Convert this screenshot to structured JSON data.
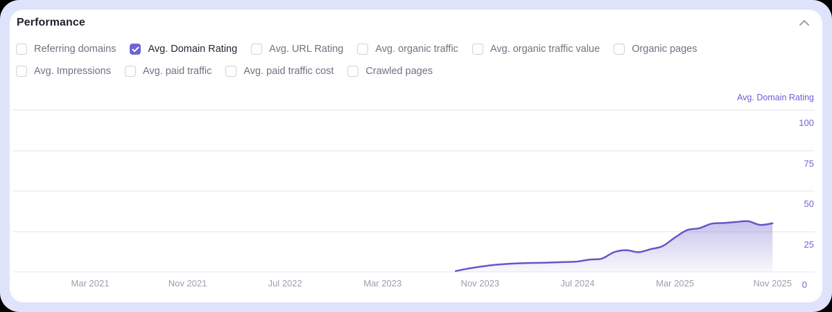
{
  "header": {
    "title": "Performance",
    "collapse_icon": "chevron-up"
  },
  "metrics": {
    "rows": [
      [
        {
          "label": "Referring domains",
          "checked": false
        },
        {
          "label": "Avg. Domain Rating",
          "checked": true
        },
        {
          "label": "Avg. URL Rating",
          "checked": false
        },
        {
          "label": "Avg. organic traffic",
          "checked": false
        },
        {
          "label": "Avg. organic traffic value",
          "checked": false
        },
        {
          "label": "Organic pages",
          "checked": false
        }
      ],
      [
        {
          "label": "Avg. Impressions",
          "checked": false
        },
        {
          "label": "Avg. paid traffic",
          "checked": false
        },
        {
          "label": "Avg. paid traffic cost",
          "checked": false
        },
        {
          "label": "Crawled pages",
          "checked": false
        }
      ]
    ]
  },
  "colors": {
    "accent": "#6f64d2",
    "line": "#6356c8",
    "frame": "#dfe4fc",
    "card": "#ffffff",
    "gridline": "#f1f2f5",
    "y_tick_text": "#6a66d1",
    "x_tick_text": "#999fa9"
  },
  "chart_data": {
    "type": "area",
    "title": "",
    "xlabel": "",
    "ylabel": "Avg. Domain Rating",
    "grid": "horizontal",
    "legend_position": "none",
    "y_axis": {
      "label": "Avg. Domain Rating",
      "side": "right",
      "ticks": [
        100,
        75,
        50,
        25,
        0
      ],
      "range": [
        0,
        100
      ]
    },
    "x_axis": {
      "ticks": [
        "Mar 2021",
        "Nov 2021",
        "Jul 2022",
        "Mar 2023",
        "Nov 2023",
        "Jul 2024",
        "Mar 2025",
        "Nov 2025"
      ],
      "frequency": "monthly",
      "tick_interval_months": 8
    },
    "series": [
      {
        "name": "Avg. Domain Rating",
        "color": "#6356c8",
        "fill": "gradient-fade-down",
        "x": [
          "Sep 2023",
          "Oct 2023",
          "Nov 2023",
          "Dec 2023",
          "Jan 2024",
          "Feb 2024",
          "Mar 2024",
          "Apr 2024",
          "May 2024",
          "Jun 2024",
          "Jul 2024",
          "Aug 2024",
          "Sep 2024",
          "Oct 2024",
          "Nov 2024",
          "Dec 2024",
          "Jan 2025",
          "Feb 2025",
          "Mar 2025",
          "Apr 2025",
          "May 2025",
          "Jun 2025",
          "Jul 2025",
          "Aug 2025",
          "Sep 2025",
          "Oct 2025",
          "Nov 2025"
        ],
        "values": [
          0.5,
          2,
          3.2,
          4.2,
          4.8,
          5.2,
          5.5,
          5.6,
          5.8,
          6.1,
          6.4,
          7.6,
          8.2,
          12.2,
          13.4,
          12.2,
          14,
          16,
          21.3,
          25.8,
          27,
          29.8,
          30.2,
          30.8,
          31.3,
          29,
          30
        ]
      }
    ]
  }
}
